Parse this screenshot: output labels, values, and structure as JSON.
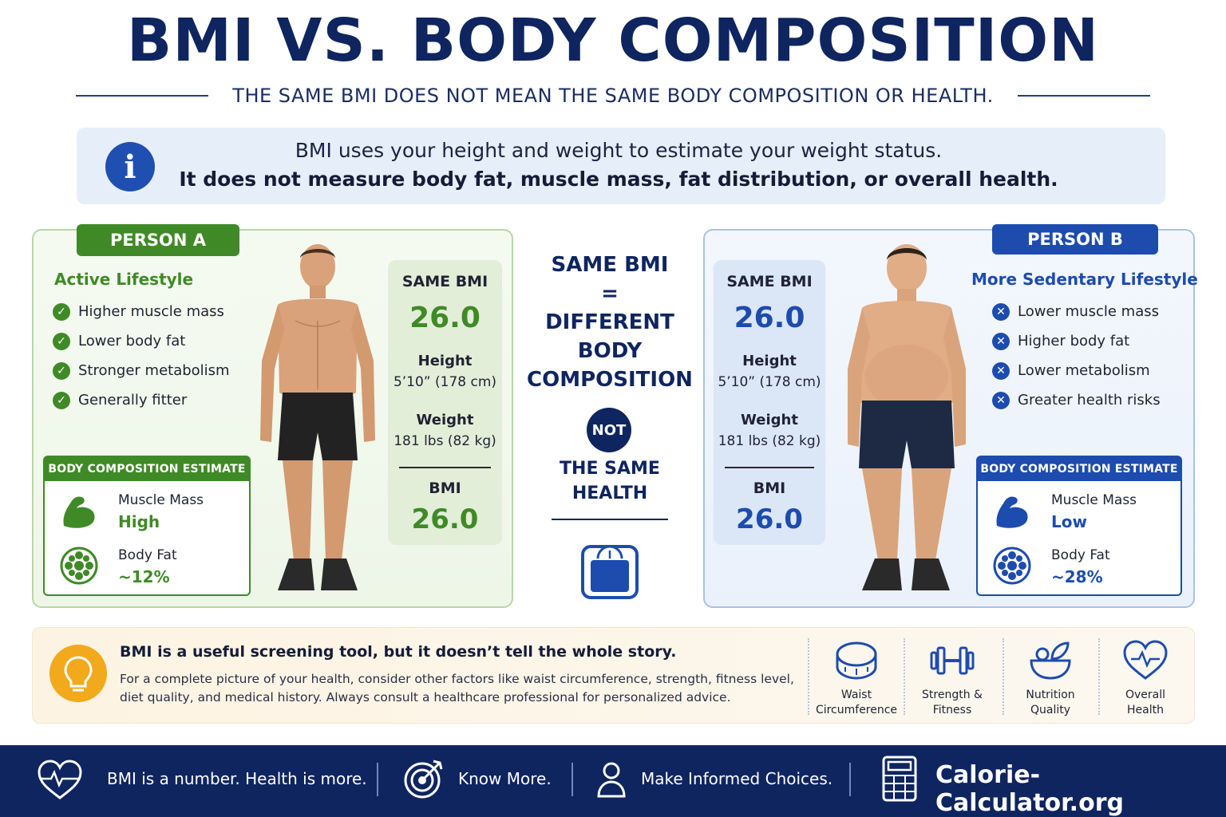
{
  "header": {
    "title": "BMI VS. BODY COMPOSITION",
    "subtitle": "THE SAME BMI DOES NOT MEAN THE SAME BODY COMPOSITION OR HEALTH."
  },
  "info": {
    "icon": "info-icon",
    "line1": "BMI uses your height and weight to estimate your weight status.",
    "line2": "It does not measure body fat, muscle mass, fat distribution, or overall health."
  },
  "person_a": {
    "tag": "PERSON A",
    "lifestyle": "Active Lifestyle",
    "traits": [
      "Higher muscle mass",
      "Lower body fat",
      "Stronger metabolism",
      "Generally fitter"
    ],
    "composition": {
      "heading": "BODY COMPOSITION ESTIMATE",
      "muscle_label": "Muscle Mass",
      "muscle_value": "High",
      "fat_label": "Body Fat",
      "fat_value": "~12%"
    },
    "stats": {
      "same_bmi_label": "SAME BMI",
      "same_bmi_value": "26.0",
      "height_label": "Height",
      "height_value": "5’10” (178 cm)",
      "weight_label": "Weight",
      "weight_value": "181 lbs (82 kg)",
      "bmi_label": "BMI",
      "bmi_value": "26.0"
    },
    "accent": "#3f8a26"
  },
  "person_b": {
    "tag": "PERSON B",
    "lifestyle": "More Sedentary Lifestyle",
    "traits": [
      "Lower muscle mass",
      "Higher body fat",
      "Lower metabolism",
      "Greater health risks"
    ],
    "composition": {
      "heading": "BODY COMPOSITION ESTIMATE",
      "muscle_label": "Muscle Mass",
      "muscle_value": "Low",
      "fat_label": "Body Fat",
      "fat_value": "~28%"
    },
    "stats": {
      "same_bmi_label": "SAME BMI",
      "same_bmi_value": "26.0",
      "height_label": "Height",
      "height_value": "5’10” (178 cm)",
      "weight_label": "Weight",
      "weight_value": "181 lbs (82 kg)",
      "bmi_label": "BMI",
      "bmi_value": "26.0"
    },
    "accent": "#1d4cae"
  },
  "center": {
    "line1": "SAME BMI",
    "line2": "=",
    "line3": "DIFFERENT",
    "line4": "BODY",
    "line5": "COMPOSITION",
    "not": "NOT",
    "line6": "THE SAME",
    "line7": "HEALTH",
    "icon": "scale-icon"
  },
  "tip": {
    "icon": "lightbulb-icon",
    "heading": "BMI is a useful screening tool, but it doesn’t tell the whole story.",
    "body_line1": "For a complete picture of your health, consider other factors like waist circumference, strength, fitness level,",
    "body_line2": "diet quality, and medical history. Always consult a healthcare professional for personalized advice.",
    "factors": [
      {
        "icon": "tape-measure-icon",
        "line1": "Waist",
        "line2": "Circumference"
      },
      {
        "icon": "dumbbell-icon",
        "line1": "Strength &",
        "line2": "Fitness"
      },
      {
        "icon": "salad-bowl-icon",
        "line1": "Nutrition",
        "line2": "Quality"
      },
      {
        "icon": "heart-pulse-icon",
        "line1": "Overall",
        "line2": "Health"
      }
    ]
  },
  "footer": {
    "item1": "BMI is a number. Health is more.",
    "item2": "Know More.",
    "item3": "Make Informed Choices.",
    "brand": "Calorie-Calculator.org"
  },
  "colors": {
    "navy": "#0f2560",
    "green": "#3f8a26",
    "blue": "#1d4cae",
    "amber": "#f2a91c"
  }
}
